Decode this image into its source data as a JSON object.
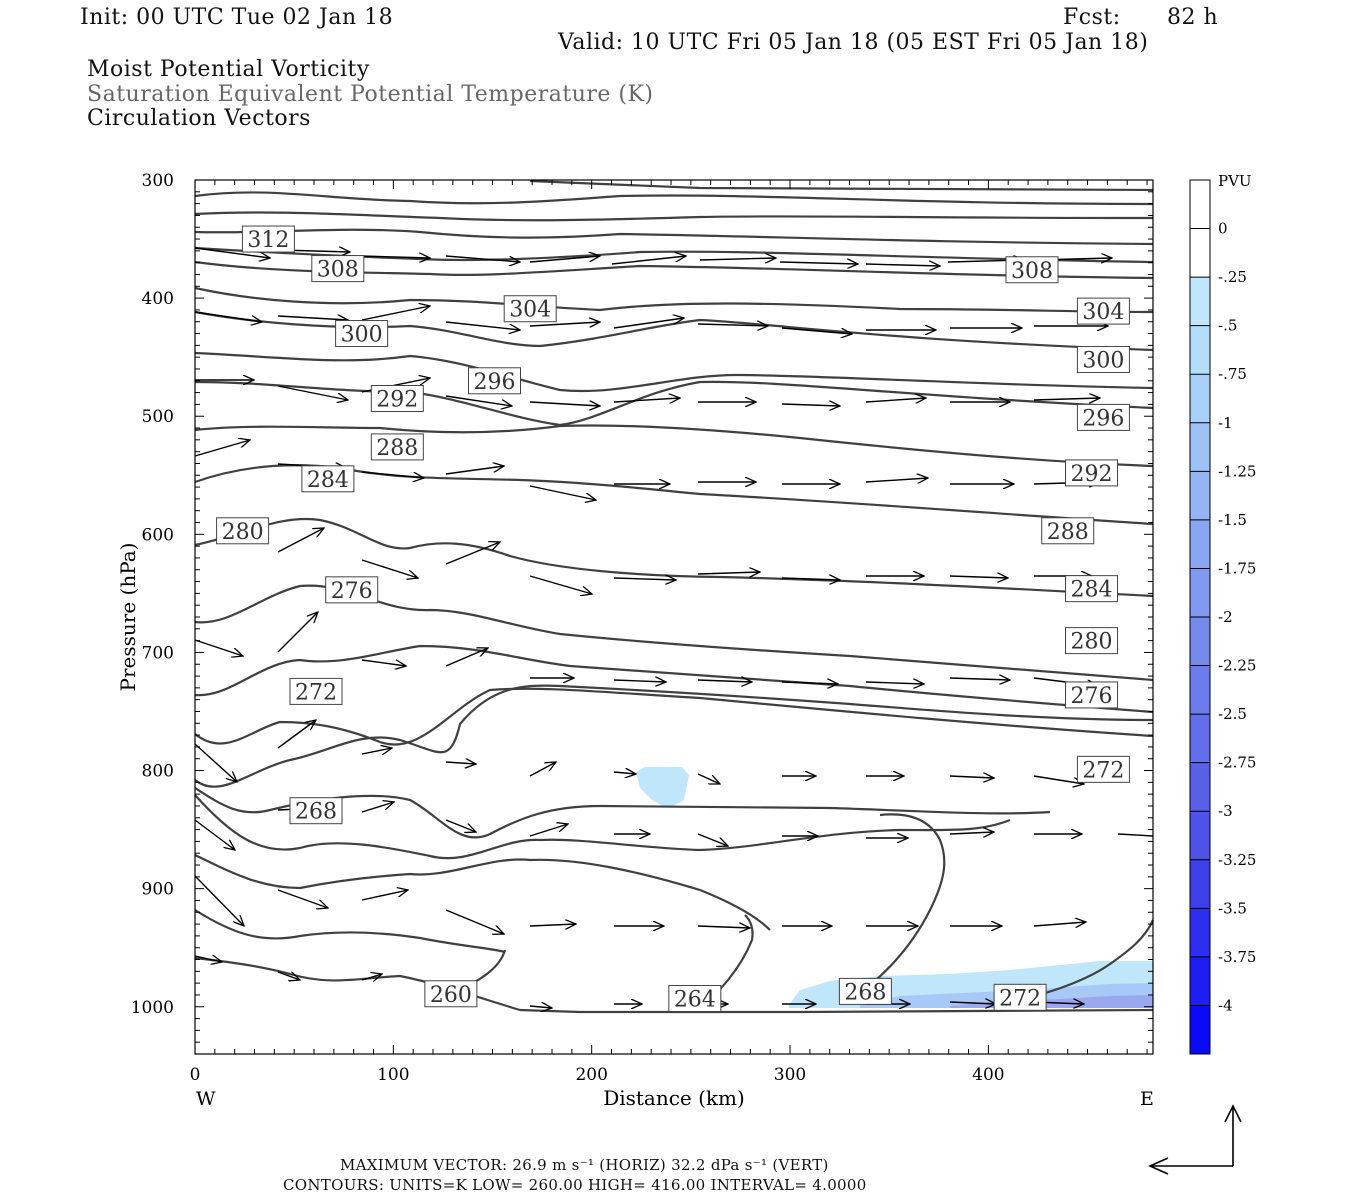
{
  "header": {
    "init": "Init: 00 UTC Tue 02 Jan 18",
    "fcst_label": "Fcst:",
    "fcst_value": "82 h",
    "valid": "Valid: 10 UTC Fri 05 Jan 18 (05 EST Fri 05 Jan 18)",
    "field1": "Moist Potential Vorticity",
    "field2": "Saturation Equivalent Potential Temperature (K)",
    "field3": "Circulation Vectors"
  },
  "footer": {
    "max_vector": "MAXIMUM VECTOR:  26.9 m s⁻¹ (HORIZ)          32.2 dPa s⁻¹ (VERT)",
    "contours": "CONTOURS:  UNITS=K  LOW=   260.00        HIGH=  416.00        INTERVAL=     4.0000"
  },
  "colors": {
    "contour": "#404040",
    "pv_light": "#bfe6fb",
    "pv_mid": "#a8c8f8",
    "pv_dark": "#9aa8f0"
  },
  "chart_data": {
    "type": "cross-section",
    "xlabel": "Distance (km)",
    "ylabel": "Pressure (hPa)",
    "x_ticks": [
      0,
      100,
      200,
      300,
      400
    ],
    "y_ticks": [
      300,
      400,
      500,
      600,
      700,
      800,
      900,
      1000
    ],
    "xlim": [
      0,
      483
    ],
    "ylim": [
      300,
      1040
    ],
    "y_inverted": true,
    "left_end": "W",
    "right_end": "E",
    "colorbar": {
      "title": "PVU",
      "labels": [
        "0",
        "-.25",
        "-.5",
        "-.75",
        "-1",
        "-1.25",
        "-1.5",
        "-1.75",
        "-2",
        "-2.25",
        "-2.5",
        "-2.75",
        "-3",
        "-3.25",
        "-3.5",
        "-3.75",
        "-4"
      ],
      "colors": [
        "#ffffff",
        "#ffffff",
        "#bfe6fb",
        "#b4dcfb",
        "#a8cff8",
        "#9ec2f6",
        "#94b4f4",
        "#8aa6f2",
        "#8098f0",
        "#768aee",
        "#6c7cec",
        "#626eea",
        "#5860e8",
        "#4e52e6",
        "#3e40ea",
        "#2e2ef0",
        "#1e1ef4",
        "#0a0af8"
      ]
    },
    "contour_labels": [
      {
        "text": "312",
        "x": 37,
        "y": 350
      },
      {
        "text": "308",
        "x": 72,
        "y": 375
      },
      {
        "text": "308",
        "x": 422,
        "y": 376
      },
      {
        "text": "304",
        "x": 169,
        "y": 409
      },
      {
        "text": "304",
        "x": 458,
        "y": 411
      },
      {
        "text": "300",
        "x": 84,
        "y": 430
      },
      {
        "text": "300",
        "x": 458,
        "y": 452
      },
      {
        "text": "296",
        "x": 151,
        "y": 470
      },
      {
        "text": "296",
        "x": 458,
        "y": 501
      },
      {
        "text": "292",
        "x": 102,
        "y": 485
      },
      {
        "text": "292",
        "x": 452,
        "y": 548
      },
      {
        "text": "288",
        "x": 102,
        "y": 526
      },
      {
        "text": "288",
        "x": 440,
        "y": 597
      },
      {
        "text": "284",
        "x": 67,
        "y": 553
      },
      {
        "text": "284",
        "x": 452,
        "y": 646
      },
      {
        "text": "280",
        "x": 24,
        "y": 597
      },
      {
        "text": "280",
        "x": 452,
        "y": 690
      },
      {
        "text": "276",
        "x": 79,
        "y": 647
      },
      {
        "text": "276",
        "x": 452,
        "y": 736
      },
      {
        "text": "272",
        "x": 61,
        "y": 733
      },
      {
        "text": "272",
        "x": 458,
        "y": 799
      },
      {
        "text": "268",
        "x": 61,
        "y": 834
      },
      {
        "text": "268",
        "x": 338,
        "y": 987
      },
      {
        "text": "264",
        "x": 252,
        "y": 993
      },
      {
        "text": "260",
        "x": 129,
        "y": 989
      },
      {
        "text": "272",
        "x": 416,
        "y": 992
      }
    ]
  }
}
